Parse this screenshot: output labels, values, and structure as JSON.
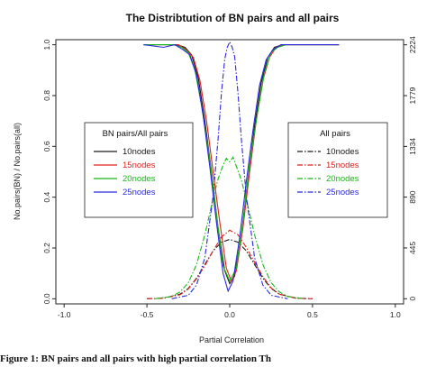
{
  "caption": "Figure 1:  BN pairs and  all  pairs  with high  partial correlation  Th",
  "chart_data": {
    "type": "line",
    "title": "The Distribtution of BN pairs and all pairs",
    "xlabel": "Partial Correlation",
    "ylabel": "No.pairs(BN) / No.pairs(all)",
    "xlim": [
      -1.05,
      1.05
    ],
    "ylim": [
      -0.02,
      1.02
    ],
    "x_ticks": [
      "-1.0",
      "-0.5",
      "0.0",
      "0.5",
      "1.0"
    ],
    "y_ticks": [
      "0.0",
      "0.2",
      "0.4",
      "0.6",
      "0.8",
      "1.0"
    ],
    "y2lim": [
      -45,
      2269
    ],
    "y2_ticks": [
      "0",
      "445",
      "890",
      "1334",
      "1779",
      "2224"
    ],
    "grid": false,
    "legends": [
      {
        "title": "BN pairs/All pairs",
        "position": "left",
        "entries": [
          "10nodes",
          "15nodes",
          "20nodes",
          "25nodes"
        ],
        "line_style": "solid"
      },
      {
        "title": "All pairs",
        "position": "right",
        "entries": [
          "10nodes",
          "15nodes",
          "20nodes",
          "25nodes"
        ],
        "line_style": "dashdot"
      }
    ],
    "series_colors": [
      "#1a1a1a",
      "#e0201a",
      "#16b816",
      "#2a2ae0"
    ],
    "bn_ratio_series": [
      {
        "name": "10nodes",
        "axis": "left",
        "color": "#1a1a1a",
        "x": [
          -0.52,
          -0.38,
          -0.32,
          -0.27,
          -0.23,
          -0.19,
          -0.15,
          -0.11,
          -0.07,
          -0.03,
          0.0,
          0.03,
          0.07,
          0.11,
          0.15,
          0.19,
          0.23,
          0.27,
          0.32,
          0.38,
          0.66
        ],
        "y": [
          1.0,
          1.0,
          1.0,
          0.99,
          0.96,
          0.87,
          0.7,
          0.5,
          0.28,
          0.11,
          0.06,
          0.09,
          0.25,
          0.47,
          0.68,
          0.85,
          0.95,
          0.99,
          1.0,
          1.0,
          1.0
        ]
      },
      {
        "name": "15nodes",
        "axis": "left",
        "color": "#e0201a",
        "x": [
          -0.52,
          -0.38,
          -0.31,
          -0.26,
          -0.22,
          -0.18,
          -0.14,
          -0.1,
          -0.06,
          -0.02,
          0.01,
          0.04,
          0.08,
          0.12,
          0.16,
          0.2,
          0.24,
          0.28,
          0.33,
          0.4,
          0.66
        ],
        "y": [
          1.0,
          1.0,
          1.0,
          0.98,
          0.95,
          0.86,
          0.7,
          0.5,
          0.3,
          0.12,
          0.07,
          0.11,
          0.28,
          0.5,
          0.7,
          0.86,
          0.95,
          0.99,
          1.0,
          1.0,
          1.0
        ]
      },
      {
        "name": "20nodes",
        "axis": "left",
        "color": "#16b816",
        "x": [
          -0.52,
          -0.4,
          -0.34,
          -0.29,
          -0.25,
          -0.21,
          -0.17,
          -0.12,
          -0.08,
          -0.04,
          0.0,
          0.04,
          0.08,
          0.12,
          0.17,
          0.21,
          0.25,
          0.29,
          0.34,
          0.4,
          0.66
        ],
        "y": [
          1.0,
          1.0,
          1.0,
          0.99,
          0.97,
          0.9,
          0.76,
          0.55,
          0.33,
          0.13,
          0.07,
          0.12,
          0.3,
          0.53,
          0.74,
          0.89,
          0.97,
          0.99,
          1.0,
          1.0,
          1.0
        ]
      },
      {
        "name": "25nodes",
        "axis": "left",
        "color": "#2a2ae0",
        "x": [
          -0.52,
          -0.4,
          -0.33,
          -0.28,
          -0.24,
          -0.2,
          -0.16,
          -0.12,
          -0.08,
          -0.04,
          -0.01,
          0.02,
          0.06,
          0.1,
          0.14,
          0.18,
          0.22,
          0.26,
          0.31,
          0.38,
          0.66
        ],
        "y": [
          1.0,
          0.99,
          1.0,
          0.98,
          0.96,
          0.88,
          0.72,
          0.52,
          0.3,
          0.1,
          0.03,
          0.07,
          0.24,
          0.46,
          0.66,
          0.84,
          0.94,
          0.98,
          1.0,
          1.0,
          1.0
        ]
      }
    ],
    "all_pairs_series": [
      {
        "name": "10nodes",
        "axis": "right",
        "color": "#1a1a1a",
        "x": [
          -0.5,
          -0.4,
          -0.3,
          -0.25,
          -0.2,
          -0.15,
          -0.1,
          -0.05,
          0.0,
          0.05,
          0.1,
          0.15,
          0.2,
          0.25,
          0.3,
          0.4,
          0.5
        ],
        "y": [
          0,
          5,
          40,
          90,
          180,
          300,
          420,
          495,
          520,
          495,
          420,
          300,
          180,
          90,
          40,
          5,
          0
        ]
      },
      {
        "name": "15nodes",
        "axis": "right",
        "color": "#e0201a",
        "x": [
          -0.5,
          -0.4,
          -0.3,
          -0.25,
          -0.2,
          -0.15,
          -0.1,
          -0.05,
          0.0,
          0.05,
          0.1,
          0.15,
          0.2,
          0.25,
          0.3,
          0.4,
          0.5
        ],
        "y": [
          0,
          5,
          35,
          85,
          175,
          290,
          420,
          540,
          600,
          560,
          450,
          320,
          195,
          95,
          40,
          5,
          0
        ]
      },
      {
        "name": "20nodes",
        "axis": "right",
        "color": "#16b816",
        "x": [
          -0.45,
          -0.35,
          -0.3,
          -0.25,
          -0.2,
          -0.15,
          -0.1,
          -0.07,
          -0.04,
          -0.02,
          0.0,
          0.02,
          0.04,
          0.07,
          0.1,
          0.15,
          0.2,
          0.25,
          0.3,
          0.35,
          0.45
        ],
        "y": [
          0,
          20,
          60,
          140,
          300,
          560,
          880,
          1050,
          1170,
          1230,
          1200,
          1240,
          1160,
          1040,
          870,
          560,
          300,
          140,
          60,
          20,
          0
        ]
      },
      {
        "name": "25nodes",
        "axis": "right",
        "color": "#2a2ae0",
        "x": [
          -0.35,
          -0.25,
          -0.2,
          -0.15,
          -0.1,
          -0.07,
          -0.05,
          -0.03,
          -0.015,
          0.0,
          0.015,
          0.03,
          0.05,
          0.07,
          0.1,
          0.15,
          0.2,
          0.25,
          0.35
        ],
        "y": [
          0,
          30,
          120,
          360,
          900,
          1400,
          1800,
          2100,
          2200,
          2250,
          2200,
          2120,
          1800,
          1400,
          900,
          360,
          120,
          30,
          0
        ]
      }
    ]
  }
}
